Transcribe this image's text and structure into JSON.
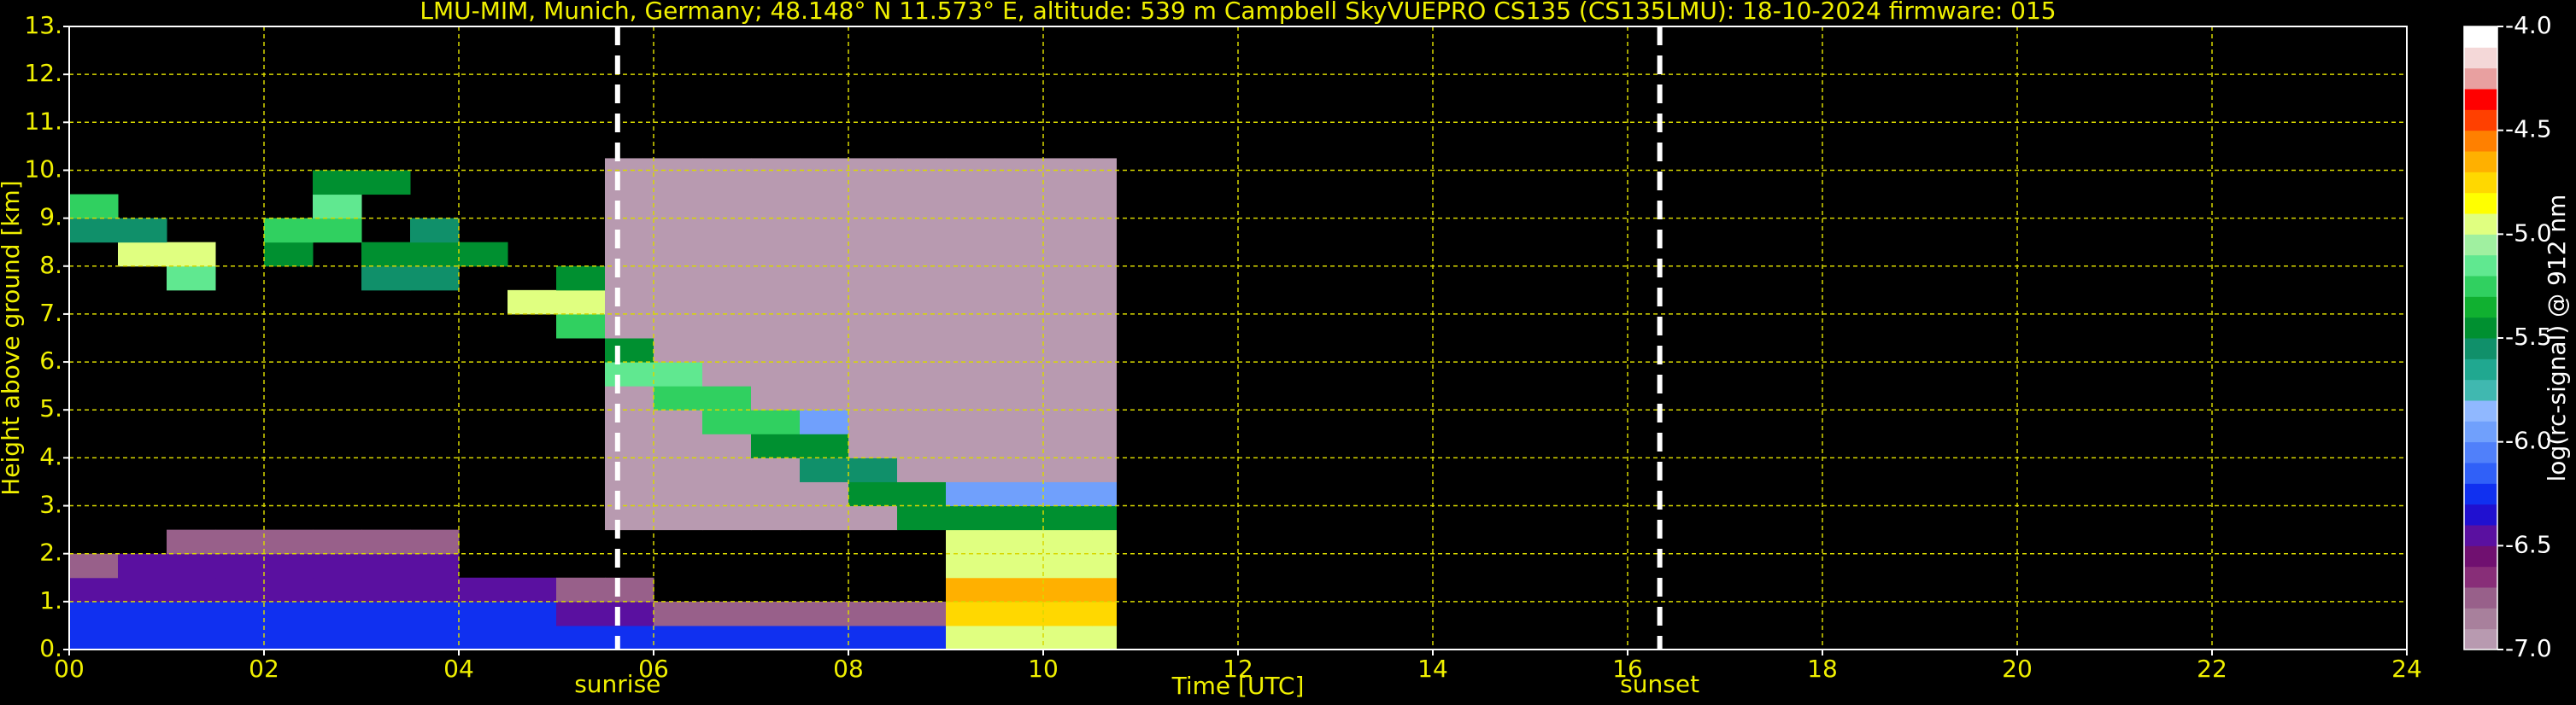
{
  "chart_data": {
    "type": "heatmap",
    "title": "LMU-MIM, Munich, Germany; 48.148° N 11.573° E, altitude: 539 m    Campbell SkyVUEPRO CS135 (CS135LMU): 18-10-2024    firmware: 015",
    "x_label": "Time [UTC]",
    "y_label": "Height above ground [km]",
    "colorbar_label": "log(rc-signal) @ 912 nm",
    "xlim": [
      0,
      24
    ],
    "xticks": [
      {
        "value": 0,
        "label": "00"
      },
      {
        "value": 2,
        "label": "02"
      },
      {
        "value": 4,
        "label": "04"
      },
      {
        "value": 6,
        "label": "06"
      },
      {
        "value": 8,
        "label": "08"
      },
      {
        "value": 10,
        "label": "10"
      },
      {
        "value": 12,
        "label": "12"
      },
      {
        "value": 14,
        "label": "14"
      },
      {
        "value": 16,
        "label": "16"
      },
      {
        "value": 18,
        "label": "18"
      },
      {
        "value": 20,
        "label": "20"
      },
      {
        "value": 22,
        "label": "22"
      },
      {
        "value": 24,
        "label": "24"
      }
    ],
    "ylim": [
      0,
      13
    ],
    "yticks": [
      {
        "value": 0,
        "label": "0."
      },
      {
        "value": 1,
        "label": "1."
      },
      {
        "value": 2,
        "label": "2."
      },
      {
        "value": 3,
        "label": "3."
      },
      {
        "value": 4,
        "label": "4."
      },
      {
        "value": 5,
        "label": "5."
      },
      {
        "value": 6,
        "label": "6."
      },
      {
        "value": 7,
        "label": "7."
      },
      {
        "value": 8,
        "label": "8."
      },
      {
        "value": 9,
        "label": "9."
      },
      {
        "value": 10,
        "label": "10."
      },
      {
        "value": 11,
        "label": "11."
      },
      {
        "value": 12,
        "label": "12."
      },
      {
        "value": 13,
        "label": "13."
      }
    ],
    "grid": true,
    "grid_color": "#d8d800",
    "sun_events": [
      {
        "label": "sunrise",
        "x": 5.63
      },
      {
        "label": "sunset",
        "x": 16.33
      }
    ],
    "x_bins": [
      0,
      0.5,
      1,
      1.5,
      2,
      2.5,
      3,
      3.5,
      4,
      4.5,
      5,
      5.5,
      6,
      6.5,
      7,
      7.5,
      8,
      8.5,
      9,
      9.5,
      10,
      10.5,
      10.75
    ],
    "y_bins": [
      0,
      0.5,
      1,
      1.5,
      2,
      2.5,
      3,
      3.5,
      4,
      4.5,
      5,
      5.5,
      6,
      6.5,
      7,
      7.5,
      8,
      8.5,
      9,
      9.5,
      10,
      10.25
    ],
    "z": [
      [
        -6.2,
        -6.2,
        -6.2,
        -6.2,
        -6.2,
        -6.2,
        -6.2,
        -6.2,
        -6.2,
        -6.2,
        -6.2,
        -6.2,
        -6.2,
        -6.2,
        -6.2,
        -6.2,
        -6.2,
        -6.2,
        -5.0,
        -5.0,
        -5.0,
        -5.0
      ],
      [
        -6.3,
        -6.3,
        -6.3,
        -6.3,
        -6.3,
        -6.3,
        -6.3,
        -6.3,
        -6.3,
        -6.3,
        -6.5,
        -6.5,
        -6.7,
        -6.7,
        -6.7,
        -6.7,
        -6.7,
        -6.7,
        -4.8,
        -4.8,
        -4.8,
        -4.8
      ],
      [
        -6.5,
        -6.5,
        -6.5,
        -6.5,
        -6.5,
        -6.5,
        -6.5,
        -6.5,
        -6.5,
        -6.5,
        -6.8,
        -6.8,
        null,
        null,
        null,
        null,
        null,
        null,
        -4.7,
        -4.7,
        -4.7,
        -4.7
      ],
      [
        -6.8,
        -6.5,
        -6.5,
        -6.5,
        -6.5,
        -6.5,
        -6.5,
        -6.5,
        null,
        null,
        null,
        null,
        null,
        null,
        null,
        null,
        null,
        null,
        -5.0,
        -5.0,
        -5.0,
        -5.0
      ],
      [
        null,
        null,
        -6.8,
        -6.8,
        -6.8,
        -6.8,
        -6.8,
        -6.8,
        null,
        null,
        null,
        null,
        null,
        null,
        null,
        null,
        null,
        null,
        -4.9,
        -4.9,
        -4.9,
        -4.9
      ],
      [
        null,
        null,
        null,
        null,
        null,
        null,
        null,
        null,
        null,
        null,
        null,
        -6.9,
        -6.9,
        -6.9,
        -6.9,
        -6.9,
        -6.9,
        -5.5,
        -5.5,
        -5.5,
        -5.5,
        -5.5
      ],
      [
        null,
        null,
        null,
        null,
        null,
        null,
        null,
        null,
        null,
        null,
        null,
        -6.9,
        -6.9,
        -6.9,
        -6.9,
        -6.9,
        -5.5,
        -5.5,
        -6.0,
        -6.0,
        -6.0,
        -6.0
      ],
      [
        null,
        null,
        null,
        null,
        null,
        null,
        null,
        null,
        null,
        null,
        null,
        -6.9,
        -6.9,
        -6.9,
        -6.9,
        -5.6,
        -5.6,
        -6.9,
        -6.9,
        -6.9,
        -6.9,
        -6.9
      ],
      [
        null,
        null,
        null,
        null,
        null,
        null,
        null,
        null,
        null,
        null,
        null,
        -6.9,
        -6.9,
        -6.9,
        -5.4,
        -5.4,
        -6.9,
        -6.9,
        -6.9,
        -6.9,
        -6.9,
        -6.9
      ],
      [
        null,
        null,
        null,
        null,
        null,
        null,
        null,
        null,
        null,
        null,
        null,
        -6.9,
        -6.9,
        -5.3,
        -5.3,
        -6.0,
        -6.9,
        -6.9,
        -6.9,
        -6.9,
        -6.9,
        -6.9
      ],
      [
        null,
        null,
        null,
        null,
        null,
        null,
        null,
        null,
        null,
        null,
        null,
        -6.9,
        -5.3,
        -5.3,
        -6.9,
        -6.9,
        -6.9,
        -6.9,
        -6.9,
        -6.9,
        -6.9,
        -6.9
      ],
      [
        null,
        null,
        null,
        null,
        null,
        null,
        null,
        null,
        null,
        null,
        null,
        -5.2,
        -5.2,
        -6.9,
        -6.9,
        -6.9,
        -6.9,
        -6.9,
        -6.9,
        -6.9,
        -6.9,
        -6.9
      ],
      [
        null,
        null,
        null,
        null,
        null,
        null,
        null,
        null,
        null,
        null,
        null,
        -5.5,
        -6.9,
        -6.9,
        -6.9,
        -6.9,
        -6.9,
        -6.9,
        -6.9,
        -6.9,
        -6.9,
        -6.9
      ],
      [
        null,
        null,
        null,
        null,
        null,
        null,
        null,
        null,
        null,
        null,
        -5.3,
        -6.9,
        -6.9,
        -6.9,
        -6.9,
        -6.9,
        -6.9,
        -6.9,
        -6.9,
        -6.9,
        -6.9,
        -6.9
      ],
      [
        null,
        null,
        null,
        null,
        null,
        null,
        null,
        null,
        null,
        -5.0,
        -5.0,
        -6.9,
        -6.9,
        -6.9,
        -6.9,
        -6.9,
        -6.9,
        -6.9,
        -6.9,
        -6.9,
        -6.9,
        -6.9
      ],
      [
        null,
        null,
        -5.2,
        null,
        null,
        null,
        -5.6,
        -5.6,
        null,
        null,
        -5.4,
        -6.9,
        -6.9,
        -6.9,
        -6.9,
        -6.9,
        -6.9,
        -6.9,
        -6.9,
        -6.9,
        -6.9,
        -6.9
      ],
      [
        null,
        -5.0,
        -5.0,
        null,
        -5.5,
        null,
        -5.4,
        -5.4,
        -5.4,
        null,
        null,
        -6.9,
        -6.9,
        -6.9,
        -6.9,
        -6.9,
        -6.9,
        -6.9,
        -6.9,
        -6.9,
        -6.9,
        -6.9
      ],
      [
        -5.6,
        -5.6,
        null,
        null,
        -5.3,
        -5.3,
        null,
        -5.6,
        null,
        null,
        null,
        -6.9,
        -6.9,
        -6.9,
        -6.9,
        -6.9,
        -6.9,
        -6.9,
        -6.9,
        -6.9,
        -6.9,
        -6.9
      ],
      [
        -5.3,
        null,
        null,
        null,
        null,
        -5.2,
        null,
        null,
        null,
        null,
        null,
        -6.9,
        -6.9,
        -6.9,
        -6.9,
        -6.9,
        -6.9,
        -6.9,
        -6.9,
        -6.9,
        -6.9,
        -6.9
      ],
      [
        null,
        null,
        null,
        null,
        null,
        -5.4,
        -5.4,
        null,
        null,
        null,
        null,
        -6.9,
        -6.9,
        -6.9,
        -6.9,
        -6.9,
        -6.9,
        -6.9,
        -6.9,
        -6.9,
        -6.9,
        -6.9
      ],
      [
        null,
        null,
        null,
        null,
        null,
        null,
        null,
        null,
        null,
        null,
        null,
        -6.9,
        -6.9,
        -6.9,
        -6.9,
        -6.9,
        -6.9,
        -6.9,
        -6.9,
        -6.9,
        -6.9,
        -6.9
      ]
    ],
    "clim": [
      -7,
      -4
    ],
    "colorbar_ticks": [
      {
        "value": -7,
        "label": "-7.0"
      },
      {
        "value": -6.5,
        "label": "-6.5"
      },
      {
        "value": -6,
        "label": "-6.0"
      },
      {
        "value": -5.5,
        "label": "-5.5"
      },
      {
        "value": -5,
        "label": "-5.0"
      },
      {
        "value": -4.5,
        "label": "-4.5"
      },
      {
        "value": -4,
        "label": "-4.0"
      }
    ],
    "colorbar_colors": [
      "#b89ab0",
      "#a8809c",
      "#98608a",
      "#882e78",
      "#701070",
      "#5a10a0",
      "#2010d0",
      "#1030f0",
      "#3060f8",
      "#5080fa",
      "#70a0fc",
      "#90b8ff",
      "#40b8b0",
      "#20a890",
      "#10906a",
      "#009030",
      "#10b030",
      "#30d060",
      "#60e890",
      "#a0f0a0",
      "#e0ff80",
      "#ffff00",
      "#ffd800",
      "#ffb000",
      "#ff8000",
      "#ff4000",
      "#ff0000",
      "#e8a0a0",
      "#f4d8d8",
      "#ffffff"
    ]
  }
}
